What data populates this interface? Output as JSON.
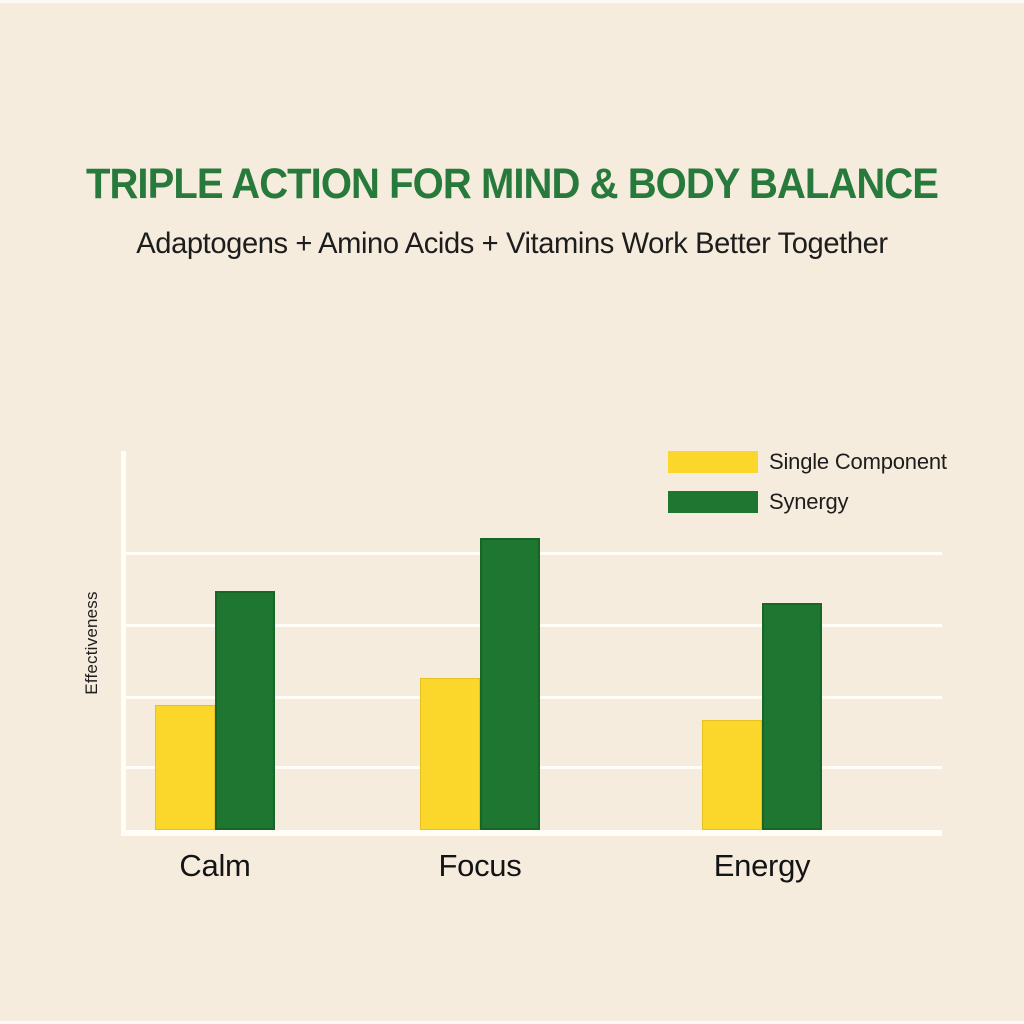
{
  "header": {
    "title": "TRIPLE ACTION FOR MIND & BODY BALANCE",
    "subtitle": "Adaptogens + Amino Acids + Vitamins Work Better Together"
  },
  "colors": {
    "background": "#f5ecdd",
    "title_green": "#27793c",
    "text_dark": "#1d1d1d",
    "bar_yellow": "#fcd72b",
    "bar_green": "#1e7630",
    "gridline_white": "#fffdf6"
  },
  "chart_data": {
    "type": "bar",
    "title": "",
    "categories": [
      "Calm",
      "Focus",
      "Energy"
    ],
    "series": [
      {
        "name": "Single Component",
        "color": "#fcd72b",
        "values": [
          33,
          40,
          29
        ]
      },
      {
        "name": "Synergy",
        "color": "#1e7630",
        "values": [
          63,
          77,
          60
        ]
      }
    ],
    "xlabel": "",
    "ylabel": "Effectiveness",
    "ylim": [
      0,
      100
    ],
    "grid": true,
    "legend_position": "top-right"
  }
}
